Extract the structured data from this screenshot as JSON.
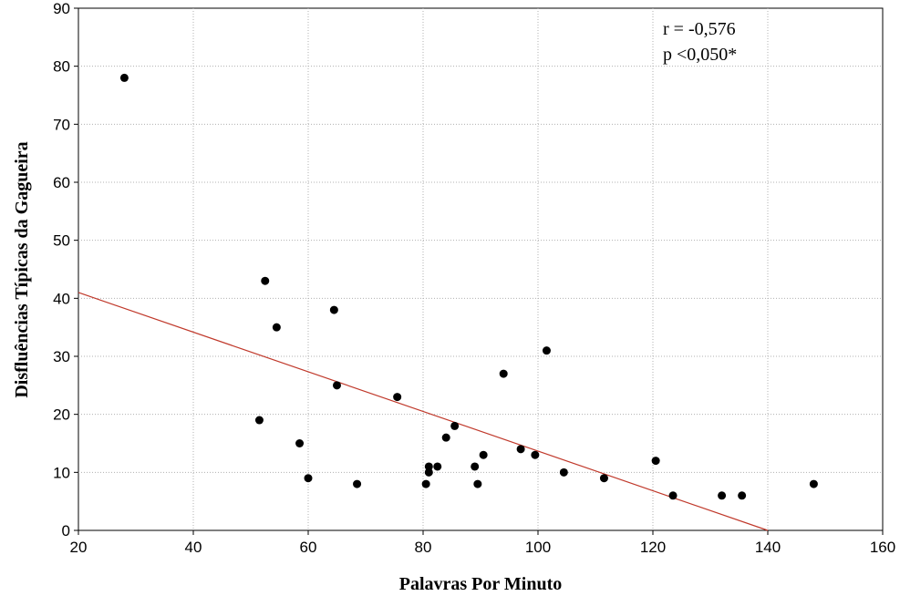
{
  "chart_data": {
    "type": "scatter",
    "xlabel": "Palavras Por Minuto",
    "ylabel": "Disfluências Típicas da Gagueira",
    "xlim": [
      20,
      160
    ],
    "ylim": [
      0,
      90
    ],
    "xticks": [
      "20",
      "40",
      "60",
      "80",
      "100",
      "120",
      "140",
      "160"
    ],
    "yticks": [
      "0",
      "10",
      "20",
      "30",
      "40",
      "50",
      "60",
      "70",
      "80",
      "90"
    ],
    "grid": true,
    "annotations": [
      "r = -0,576",
      "p <0,050*"
    ],
    "marker_color": "#000000",
    "fit_line_color": "#c0392b",
    "fit_line": {
      "x": [
        20,
        140
      ],
      "y": [
        41,
        0
      ]
    },
    "points": [
      {
        "x": 28,
        "y": 78
      },
      {
        "x": 51.5,
        "y": 19
      },
      {
        "x": 52.5,
        "y": 43
      },
      {
        "x": 54.5,
        "y": 35
      },
      {
        "x": 58.5,
        "y": 15
      },
      {
        "x": 60,
        "y": 9
      },
      {
        "x": 64.5,
        "y": 38
      },
      {
        "x": 65,
        "y": 25
      },
      {
        "x": 68.5,
        "y": 8
      },
      {
        "x": 75.5,
        "y": 23
      },
      {
        "x": 80.5,
        "y": 8
      },
      {
        "x": 81,
        "y": 10
      },
      {
        "x": 81,
        "y": 11
      },
      {
        "x": 82.5,
        "y": 11
      },
      {
        "x": 84,
        "y": 16
      },
      {
        "x": 85.5,
        "y": 18
      },
      {
        "x": 89,
        "y": 11
      },
      {
        "x": 89.5,
        "y": 8
      },
      {
        "x": 90.5,
        "y": 13
      },
      {
        "x": 94,
        "y": 27
      },
      {
        "x": 97,
        "y": 14
      },
      {
        "x": 99.5,
        "y": 13
      },
      {
        "x": 101.5,
        "y": 31
      },
      {
        "x": 104.5,
        "y": 10
      },
      {
        "x": 111.5,
        "y": 9
      },
      {
        "x": 120.5,
        "y": 12
      },
      {
        "x": 123.5,
        "y": 6
      },
      {
        "x": 132,
        "y": 6
      },
      {
        "x": 135.5,
        "y": 6
      },
      {
        "x": 148,
        "y": 8
      }
    ]
  }
}
